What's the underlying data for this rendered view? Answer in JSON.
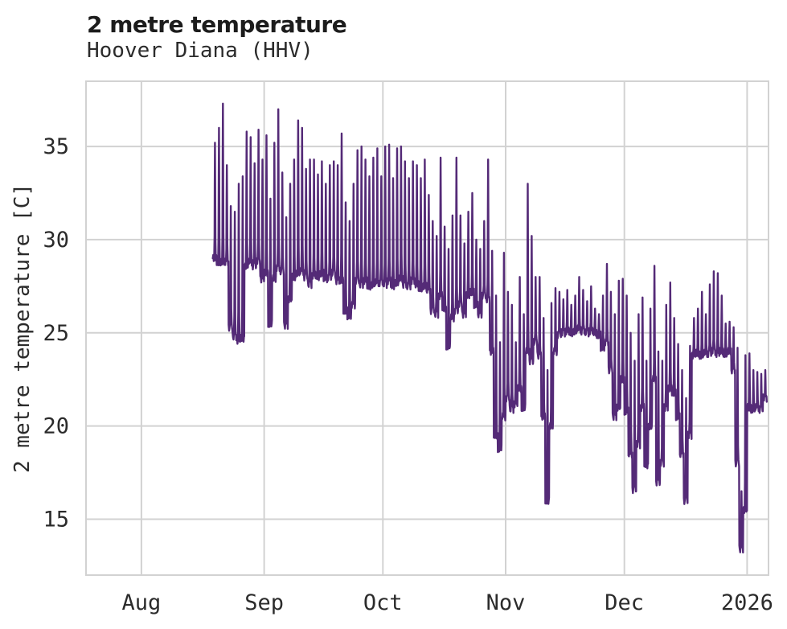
{
  "title": "2 metre temperature",
  "subtitle": "Hoover Diana (HHV)",
  "chart_data": {
    "type": "line",
    "title": "2 metre temperature",
    "subtitle": "Hoover Diana (HHV)",
    "xlabel": "",
    "ylabel": "2 metre temperature [C]",
    "unit": "C",
    "grid": true,
    "legend": "none",
    "line_color": "#542a77",
    "grid_color": "#d2d2d2",
    "text_color": "#2b2b2b",
    "y_ticks": [
      15,
      20,
      25,
      30,
      35
    ],
    "ylim": [
      12.0,
      38.5
    ],
    "x_tick_labels": [
      "Aug",
      "Sep",
      "Oct",
      "Nov",
      "Dec",
      "2026"
    ],
    "x_tick_day_offsets": [
      0,
      31,
      61,
      92,
      122,
      153
    ],
    "x_range_days": [
      -14,
      158.4
    ],
    "series_description": "Hourly 2 m temperature with strong diurnal cycle; values below given as estimated daily [date, min, max] envelope read from the plot",
    "start_day_offset": 18,
    "daily_envelope": [
      [
        "Aug 19",
        29.0,
        35.2
      ],
      [
        "Aug 20",
        28.8,
        36.0
      ],
      [
        "Aug 21",
        28.8,
        37.3
      ],
      [
        "Aug 22",
        28.8,
        34.0
      ],
      [
        "Aug 23",
        25.3,
        31.8
      ],
      [
        "Aug 24",
        24.8,
        31.5
      ],
      [
        "Aug 25",
        24.6,
        33.0
      ],
      [
        "Aug 26",
        24.7,
        33.4
      ],
      [
        "Aug 27",
        28.6,
        35.8
      ],
      [
        "Aug 28",
        28.8,
        35.5
      ],
      [
        "Aug 29",
        28.6,
        34.1
      ],
      [
        "Aug 30",
        28.8,
        35.9
      ],
      [
        "Aug 31",
        27.9,
        34.3
      ],
      [
        "Sep 1",
        28.2,
        35.6
      ],
      [
        "Sep 2",
        25.5,
        32.2
      ],
      [
        "Sep 3",
        27.9,
        35.2
      ],
      [
        "Sep 4",
        28.5,
        37.0
      ],
      [
        "Sep 5",
        28.3,
        33.6
      ],
      [
        "Sep 6",
        25.4,
        31.2
      ],
      [
        "Sep 7",
        26.8,
        33.0
      ],
      [
        "Sep 8",
        28.0,
        34.3
      ],
      [
        "Sep 9",
        28.2,
        36.4
      ],
      [
        "Sep 10",
        28.3,
        36.0
      ],
      [
        "Sep 11",
        28.0,
        33.8
      ],
      [
        "Sep 12",
        27.6,
        34.3
      ],
      [
        "Sep 13",
        28.1,
        34.3
      ],
      [
        "Sep 14",
        28.0,
        33.5
      ],
      [
        "Sep 15",
        28.2,
        34.2
      ],
      [
        "Sep 16",
        27.9,
        33.0
      ],
      [
        "Sep 17",
        28.0,
        34.0
      ],
      [
        "Sep 18",
        28.2,
        34.2
      ],
      [
        "Sep 19",
        27.8,
        34.0
      ],
      [
        "Sep 20",
        27.8,
        35.7
      ],
      [
        "Sep 21",
        26.2,
        32.0
      ],
      [
        "Sep 22",
        25.9,
        31.0
      ],
      [
        "Sep 23",
        26.5,
        33.0
      ],
      [
        "Sep 24",
        27.8,
        34.8
      ],
      [
        "Sep 25",
        27.6,
        35.0
      ],
      [
        "Sep 26",
        27.8,
        34.3
      ],
      [
        "Sep 27",
        27.5,
        33.4
      ],
      [
        "Sep 28",
        27.6,
        34.4
      ],
      [
        "Sep 29",
        27.7,
        34.9
      ],
      [
        "Sep 30",
        27.7,
        33.4
      ],
      [
        "Oct 1",
        27.6,
        35.0
      ],
      [
        "Oct 2",
        27.8,
        35.1
      ],
      [
        "Oct 3",
        27.5,
        33.3
      ],
      [
        "Oct 4",
        27.7,
        34.9
      ],
      [
        "Oct 5",
        27.9,
        35.0
      ],
      [
        "Oct 6",
        27.6,
        34.2
      ],
      [
        "Oct 7",
        27.5,
        33.3
      ],
      [
        "Oct 8",
        27.8,
        34.2
      ],
      [
        "Oct 9",
        27.6,
        34.0
      ],
      [
        "Oct 10",
        27.4,
        33.3
      ],
      [
        "Oct 11",
        27.5,
        34.3
      ],
      [
        "Oct 12",
        27.3,
        32.4
      ],
      [
        "Oct 13",
        26.2,
        31.0
      ],
      [
        "Oct 14",
        26.0,
        30.2
      ],
      [
        "Oct 15",
        27.0,
        34.4
      ],
      [
        "Oct 16",
        26.3,
        30.7
      ],
      [
        "Oct 17",
        24.3,
        29.5
      ],
      [
        "Oct 18",
        25.8,
        31.3
      ],
      [
        "Oct 19",
        26.2,
        34.4
      ],
      [
        "Oct 20",
        26.5,
        31.3
      ],
      [
        "Oct 21",
        26.0,
        29.8
      ],
      [
        "Oct 22",
        27.0,
        31.5
      ],
      [
        "Oct 23",
        27.2,
        32.5
      ],
      [
        "Oct 24",
        26.5,
        30.0
      ],
      [
        "Oct 25",
        26.0,
        29.5
      ],
      [
        "Oct 26",
        27.0,
        31.0
      ],
      [
        "Oct 27",
        26.8,
        34.3
      ],
      [
        "Oct 28",
        24.0,
        29.4
      ],
      [
        "Oct 29",
        19.5,
        27.0
      ],
      [
        "Oct 30",
        18.8,
        24.5
      ],
      [
        "Oct 31",
        20.5,
        29.3
      ],
      [
        "Nov 1",
        21.5,
        27.2
      ],
      [
        "Nov 2",
        20.9,
        26.5
      ],
      [
        "Nov 3",
        21.2,
        24.5
      ],
      [
        "Nov 4",
        22.0,
        28.0
      ],
      [
        "Nov 5",
        21.0,
        26.0
      ],
      [
        "Nov 6",
        24.0,
        33.0
      ],
      [
        "Nov 7",
        23.5,
        30.2
      ],
      [
        "Nov 8",
        24.5,
        28.0
      ],
      [
        "Nov 9",
        23.8,
        28.0
      ],
      [
        "Nov 10",
        20.5,
        25.8
      ],
      [
        "Nov 11",
        16.0,
        23.0
      ],
      [
        "Nov 12",
        20.0,
        26.6
      ],
      [
        "Nov 13",
        24.0,
        27.4
      ],
      [
        "Nov 14",
        24.9,
        27.2
      ],
      [
        "Nov 15",
        25.0,
        26.8
      ],
      [
        "Nov 16",
        25.1,
        27.3
      ],
      [
        "Nov 17",
        25.0,
        26.5
      ],
      [
        "Nov 18",
        25.1,
        27.0
      ],
      [
        "Nov 19",
        25.2,
        28.0
      ],
      [
        "Nov 20",
        25.1,
        27.3
      ],
      [
        "Nov 21",
        25.0,
        26.7
      ],
      [
        "Nov 22",
        25.1,
        27.5
      ],
      [
        "Nov 23",
        25.0,
        26.3
      ],
      [
        "Nov 24",
        24.9,
        26.0
      ],
      [
        "Nov 25",
        24.2,
        27.0
      ],
      [
        "Nov 26",
        24.5,
        28.7
      ],
      [
        "Nov 27",
        23.0,
        27.2
      ],
      [
        "Nov 28",
        20.5,
        26.0
      ],
      [
        "Nov 29",
        21.0,
        27.8
      ],
      [
        "Nov 30",
        22.5,
        27.9
      ],
      [
        "Dec 1",
        20.8,
        27.0
      ],
      [
        "Dec 2",
        18.5,
        25.0
      ],
      [
        "Dec 3",
        16.6,
        23.5
      ],
      [
        "Dec 4",
        19.0,
        26.0
      ],
      [
        "Dec 5",
        21.0,
        26.9
      ],
      [
        "Dec 6",
        17.9,
        23.5
      ],
      [
        "Dec 7",
        20.0,
        26.3
      ],
      [
        "Dec 8",
        22.5,
        28.6
      ],
      [
        "Dec 9",
        17.0,
        24.0
      ],
      [
        "Dec 10",
        18.0,
        23.5
      ],
      [
        "Dec 11",
        21.0,
        26.5
      ],
      [
        "Dec 12",
        22.0,
        27.7
      ],
      [
        "Dec 13",
        21.8,
        25.8
      ],
      [
        "Dec 14",
        20.5,
        24.4
      ],
      [
        "Dec 15",
        18.5,
        23.0
      ],
      [
        "Dec 16",
        16.0,
        21.5
      ],
      [
        "Dec 17",
        19.5,
        24.3
      ],
      [
        "Dec 18",
        23.8,
        25.8
      ],
      [
        "Dec 19",
        23.9,
        26.3
      ],
      [
        "Dec 20",
        23.8,
        27.2
      ],
      [
        "Dec 21",
        23.9,
        26.0
      ],
      [
        "Dec 22",
        23.9,
        27.6
      ],
      [
        "Dec 23",
        24.0,
        28.3
      ],
      [
        "Dec 24",
        23.9,
        28.2
      ],
      [
        "Dec 25",
        24.0,
        27.0
      ],
      [
        "Dec 26",
        23.9,
        25.5
      ],
      [
        "Dec 27",
        24.0,
        25.6
      ],
      [
        "Dec 28",
        23.0,
        25.3
      ],
      [
        "Dec 29",
        18.0,
        24.2
      ],
      [
        "Dec 30",
        13.4,
        16.5
      ],
      [
        "Dec 31",
        15.5,
        23.8
      ],
      [
        "Jan 1",
        21.0,
        23.9
      ],
      [
        "Jan 2",
        20.9,
        23.0
      ],
      [
        "Jan 3",
        21.0,
        22.9
      ],
      [
        "Jan 4",
        20.9,
        22.8
      ],
      [
        "Jan 5",
        21.5,
        23.0
      ]
    ]
  }
}
